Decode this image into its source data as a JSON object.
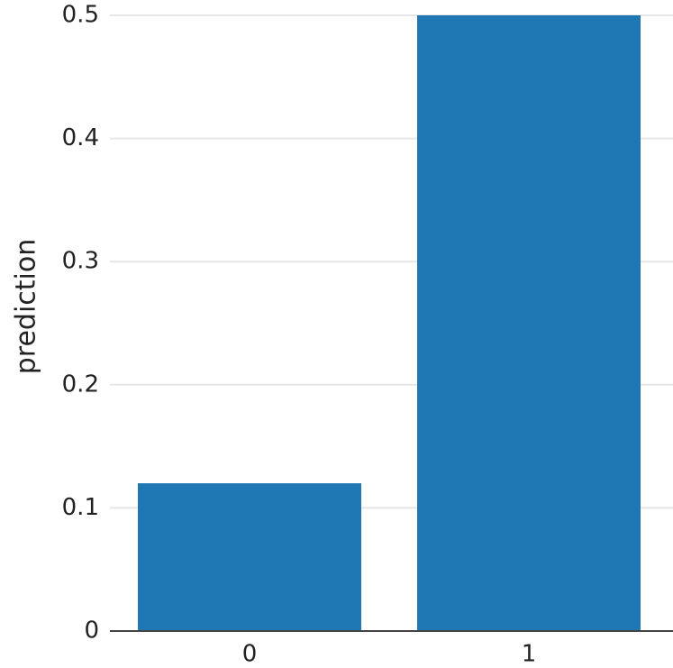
{
  "chart_data": {
    "type": "bar",
    "y_label": "prediction",
    "categories": [
      "0",
      "1"
    ],
    "values": [
      0.12,
      0.5
    ],
    "color": "#1f77b4",
    "ylim": [
      0,
      0.5
    ],
    "yticks": [
      0,
      0.1,
      0.2,
      0.3,
      0.4,
      0.5
    ],
    "grid": true
  }
}
